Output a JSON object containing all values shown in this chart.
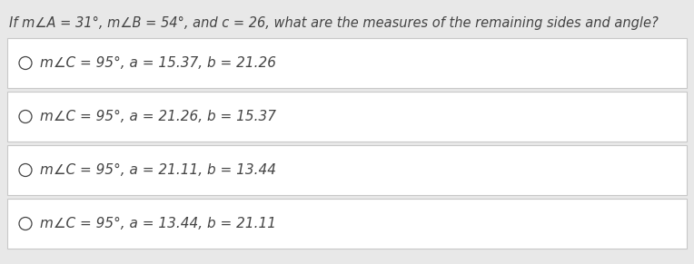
{
  "question": "If m∠A = 31°, m∠B = 54°, and c = 26, what are the measures of the remaining sides and angle?",
  "options": [
    "m∠C = 95°, a = 15.37, b = 21.26",
    "m∠C = 95°, a = 21.26, b = 15.37",
    "m∠C = 95°, a = 21.11, b = 13.44",
    "m∠C = 95°, a = 13.44, b = 21.11"
  ],
  "bg_color": "#e8e8e8",
  "box_color": "#ffffff",
  "border_color": "#c8c8c8",
  "text_color": "#444444",
  "question_fontsize": 10.5,
  "option_fontsize": 11.0,
  "fig_width": 7.64,
  "fig_height": 2.91,
  "dpi": 100
}
